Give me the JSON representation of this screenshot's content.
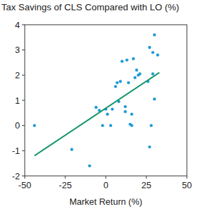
{
  "chart_data": {
    "type": "scatter",
    "title": "Tax Savings of CLS Compared with LO (%)",
    "x_label": "Market Return (%)",
    "xlim": [
      -50,
      50
    ],
    "xticks": [
      -50,
      -25,
      0,
      25,
      50
    ],
    "ylim": [
      -2,
      4
    ],
    "yticks": [
      -2,
      -1,
      0,
      1,
      2,
      3,
      4
    ],
    "grid": false,
    "series": [
      {
        "type": "scatter",
        "color": "#1e9ad6",
        "marker": "circle",
        "x": [
          -44,
          -21,
          -10,
          -6,
          -4,
          -2,
          0,
          1,
          3,
          4,
          6,
          7,
          8,
          9,
          10,
          12,
          12,
          13,
          14,
          15,
          16,
          16,
          17,
          18,
          19,
          20,
          21,
          26,
          27,
          27,
          28,
          29,
          29,
          30,
          30,
          32
        ],
        "values": [
          0,
          -0.95,
          -1.6,
          0.72,
          0.6,
          0,
          0.65,
          0.45,
          0,
          0.65,
          1.55,
          1.7,
          0.95,
          1.75,
          2.55,
          0.75,
          0.55,
          2.6,
          1.7,
          0.05,
          0,
          0.45,
          2.65,
          1.9,
          2.2,
          2.0,
          2.05,
          1.75,
          -0.85,
          3.1,
          0,
          2.9,
          2.05,
          1.05,
          3.6,
          2.8
        ]
      },
      {
        "type": "line",
        "color": "#13976b",
        "line_style": "solid",
        "x": [
          -44,
          33
        ],
        "values": [
          -1.2,
          2.1
        ]
      }
    ]
  }
}
